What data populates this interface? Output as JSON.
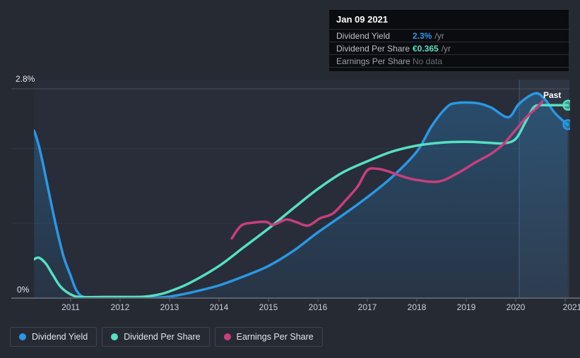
{
  "page": {
    "background": "#262a33"
  },
  "tooltip": {
    "date": "Jan 09 2021",
    "rows": [
      {
        "label": "Dividend Yield",
        "value": "2.3%",
        "suffix": "/yr",
        "value_color": "#2b97e5"
      },
      {
        "label": "Dividend Per Share",
        "value": "€0.365",
        "suffix": "/yr",
        "value_color": "#57dfc3"
      },
      {
        "label": "Earnings Per Share",
        "value": "No data",
        "suffix": "",
        "value_color": "#686d74"
      }
    ]
  },
  "legend": [
    {
      "label": "Dividend Yield",
      "color": "#2b97e5"
    },
    {
      "label": "Dividend Per Share",
      "color": "#57dfc3"
    },
    {
      "label": "Earnings Per Share",
      "color": "#c73f7e"
    }
  ],
  "chart_data": {
    "type": "line",
    "title": "",
    "xlabel": "",
    "ylabel": "",
    "y_axis": {
      "min": 0,
      "max": 2.8,
      "unit": "%",
      "top_label": "2.8%",
      "bottom_label": "0%",
      "gridlines": [
        0,
        1,
        2,
        2.8
      ]
    },
    "x_axis": {
      "ticks": [
        "2011",
        "2012",
        "2013",
        "2014",
        "2015",
        "2016",
        "2017",
        "2018",
        "2019",
        "2020",
        "2021"
      ],
      "range_years": [
        2010.25,
        2021.08
      ],
      "last_tick_clipped": true
    },
    "annotations": {
      "past_label": "Past",
      "past_band_start_year": 2020.07
    },
    "note": "All series plotted against the 0-2.8% axis; Dividend Per Share end value shown in tooltip as €0.365/yr, Dividend Yield end value 2.3%/yr, Earnings Per Share has no data at Jan 09 2021.",
    "series": [
      {
        "name": "Dividend Yield",
        "color": "#2b97e5",
        "unit": "%",
        "area_fill": true,
        "end_dot": true,
        "points": [
          [
            2010.26,
            2.24
          ],
          [
            2010.34,
            2.08
          ],
          [
            2010.44,
            1.8
          ],
          [
            2010.58,
            1.35
          ],
          [
            2010.72,
            0.92
          ],
          [
            2010.86,
            0.55
          ],
          [
            2011.0,
            0.3
          ],
          [
            2011.12,
            0.1
          ],
          [
            2011.28,
            0.01
          ],
          [
            2011.6,
            0.005
          ],
          [
            2012.2,
            0.005
          ],
          [
            2012.7,
            0.005
          ],
          [
            2013.0,
            0.02
          ],
          [
            2013.4,
            0.07
          ],
          [
            2014.0,
            0.17
          ],
          [
            2014.5,
            0.29
          ],
          [
            2015.0,
            0.43
          ],
          [
            2015.5,
            0.63
          ],
          [
            2016.0,
            0.88
          ],
          [
            2016.5,
            1.11
          ],
          [
            2017.0,
            1.35
          ],
          [
            2017.5,
            1.62
          ],
          [
            2018.0,
            1.96
          ],
          [
            2018.3,
            2.3
          ],
          [
            2018.6,
            2.55
          ],
          [
            2018.8,
            2.61
          ],
          [
            2019.2,
            2.61
          ],
          [
            2019.5,
            2.55
          ],
          [
            2019.85,
            2.42
          ],
          [
            2020.07,
            2.6
          ],
          [
            2020.4,
            2.74
          ],
          [
            2020.6,
            2.65
          ],
          [
            2020.8,
            2.47
          ],
          [
            2021.05,
            2.32
          ]
        ]
      },
      {
        "name": "Dividend Per Share",
        "color": "#57dfc3",
        "unit": "axis-%",
        "area_fill": false,
        "end_dot": true,
        "points": [
          [
            2010.26,
            0.52
          ],
          [
            2010.36,
            0.54
          ],
          [
            2010.5,
            0.46
          ],
          [
            2010.64,
            0.31
          ],
          [
            2010.8,
            0.15
          ],
          [
            2011.0,
            0.05
          ],
          [
            2011.2,
            0.015
          ],
          [
            2011.7,
            0.015
          ],
          [
            2012.2,
            0.015
          ],
          [
            2012.5,
            0.02
          ],
          [
            2012.8,
            0.05
          ],
          [
            2013.0,
            0.09
          ],
          [
            2013.4,
            0.2
          ],
          [
            2014.0,
            0.43
          ],
          [
            2014.5,
            0.68
          ],
          [
            2015.0,
            0.93
          ],
          [
            2015.5,
            1.2
          ],
          [
            2016.0,
            1.46
          ],
          [
            2016.5,
            1.68
          ],
          [
            2017.0,
            1.83
          ],
          [
            2017.5,
            1.96
          ],
          [
            2018.0,
            2.04
          ],
          [
            2018.5,
            2.08
          ],
          [
            2019.0,
            2.09
          ],
          [
            2019.4,
            2.08
          ],
          [
            2019.75,
            2.07
          ],
          [
            2020.0,
            2.13
          ],
          [
            2020.2,
            2.36
          ],
          [
            2020.36,
            2.55
          ],
          [
            2020.5,
            2.58
          ],
          [
            2020.8,
            2.58
          ],
          [
            2021.05,
            2.58
          ]
        ]
      },
      {
        "name": "Earnings Per Share",
        "color": "#c73f7e",
        "unit": "axis-%",
        "area_fill": false,
        "end_dot": false,
        "points": [
          [
            2014.26,
            0.8
          ],
          [
            2014.45,
            0.97
          ],
          [
            2014.7,
            1.01
          ],
          [
            2014.95,
            1.02
          ],
          [
            2015.1,
            0.98
          ],
          [
            2015.35,
            1.05
          ],
          [
            2015.55,
            1.02
          ],
          [
            2015.8,
            0.97
          ],
          [
            2016.05,
            1.07
          ],
          [
            2016.3,
            1.13
          ],
          [
            2016.55,
            1.3
          ],
          [
            2016.8,
            1.49
          ],
          [
            2017.0,
            1.71
          ],
          [
            2017.2,
            1.73
          ],
          [
            2017.4,
            1.7
          ],
          [
            2017.7,
            1.63
          ],
          [
            2018.0,
            1.58
          ],
          [
            2018.45,
            1.56
          ],
          [
            2018.85,
            1.68
          ],
          [
            2019.2,
            1.82
          ],
          [
            2019.5,
            1.93
          ],
          [
            2019.75,
            2.06
          ],
          [
            2020.0,
            2.25
          ],
          [
            2020.2,
            2.41
          ],
          [
            2020.4,
            2.53
          ],
          [
            2020.54,
            2.63
          ]
        ]
      }
    ],
    "colors": {
      "background": "#262a33",
      "gridline": "#323943",
      "gridline_top": "#49505a",
      "axis_line": "#5b626a",
      "past_band_fill": "rgba(120,165,230,0.10)",
      "past_divider": "rgba(135,175,235,0.30)",
      "area_fill_top": "rgba(43,151,229,0.30)",
      "area_fill_bottom": "rgba(43,151,229,0.07)"
    }
  }
}
